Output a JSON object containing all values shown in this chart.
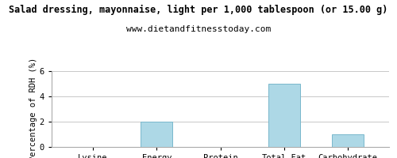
{
  "title": "Salad dressing, mayonnaise, light per 1,000 tablespoon (or 15.00 g)",
  "subtitle": "www.dietandfitnesstoday.com",
  "categories": [
    "Lysine",
    "Energy",
    "Protein",
    "Total-Fat",
    "Carbohydrate"
  ],
  "values": [
    0,
    2.0,
    0,
    5.0,
    1.0
  ],
  "bar_color": "#add8e6",
  "bar_edge_color": "#7ab8cc",
  "ylabel": "Percentage of RDH (%)",
  "ylim": [
    0,
    6
  ],
  "yticks": [
    0,
    2,
    4,
    6
  ],
  "background_color": "#ffffff",
  "grid_color": "#c8c8c8",
  "title_fontsize": 8.5,
  "subtitle_fontsize": 8,
  "axis_label_fontsize": 7.5,
  "tick_fontsize": 7.5,
  "font_family": "monospace"
}
